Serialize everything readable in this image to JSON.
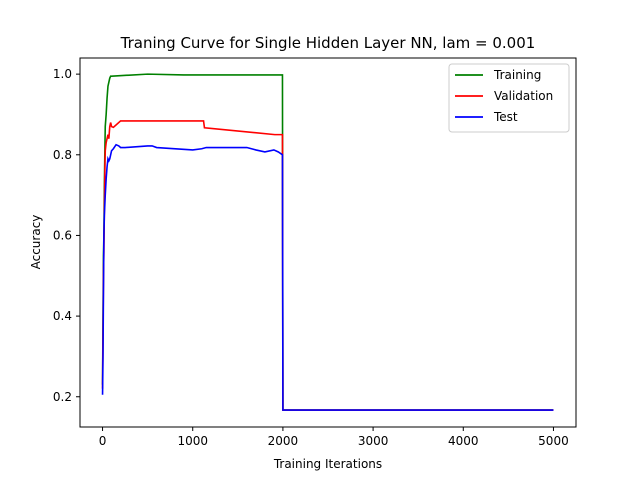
{
  "chart_data": {
    "type": "line",
    "title": "Traning Curve for Single Hidden Layer NN, lam = 0.001",
    "xlabel": "Training Iterations",
    "ylabel": "Accuracy",
    "xlim": [
      -250,
      5250
    ],
    "ylim": [
      0.125,
      1.04
    ],
    "xticks": [
      0,
      1000,
      2000,
      3000,
      4000,
      5000
    ],
    "yticks": [
      0.2,
      0.4,
      0.6,
      0.8,
      1.0
    ],
    "ytick_labels": [
      "0.2",
      "0.4",
      "0.6",
      "0.8",
      "1.0"
    ],
    "grid": false,
    "legend": "top-right",
    "series": [
      {
        "name": "Training",
        "color": "#008000",
        "x": [
          0,
          10,
          15,
          20,
          25,
          30,
          40,
          50,
          60,
          70,
          80,
          90,
          100,
          500,
          900,
          1995,
          2000,
          5000
        ],
        "y": [
          0.23,
          0.55,
          0.6,
          0.72,
          0.8,
          0.87,
          0.9,
          0.94,
          0.97,
          0.98,
          0.99,
          0.995,
          0.995,
          1.0,
          0.998,
          0.998,
          0.167,
          0.167
        ]
      },
      {
        "name": "Validation",
        "color": "#ff0000",
        "x": [
          0,
          10,
          15,
          20,
          25,
          30,
          40,
          50,
          60,
          70,
          80,
          90,
          100,
          120,
          200,
          1120,
          1130,
          1910,
          1995,
          2000,
          5000
        ],
        "y": [
          0.22,
          0.5,
          0.56,
          0.66,
          0.75,
          0.81,
          0.83,
          0.84,
          0.85,
          0.84,
          0.87,
          0.88,
          0.87,
          0.868,
          0.884,
          0.884,
          0.867,
          0.85,
          0.85,
          0.167,
          0.167
        ]
      },
      {
        "name": "Test",
        "color": "#0000ff",
        "x": [
          0,
          5,
          10,
          15,
          20,
          30,
          40,
          50,
          60,
          70,
          80,
          100,
          120,
          150,
          180,
          200,
          250,
          500,
          550,
          600,
          1000,
          1100,
          1150,
          1600,
          1700,
          1800,
          1900,
          1950,
          1995,
          2000,
          5000
        ],
        "y": [
          0.205,
          0.3,
          0.46,
          0.6,
          0.65,
          0.7,
          0.74,
          0.77,
          0.79,
          0.785,
          0.79,
          0.81,
          0.815,
          0.825,
          0.822,
          0.818,
          0.818,
          0.822,
          0.822,
          0.818,
          0.812,
          0.815,
          0.818,
          0.818,
          0.812,
          0.807,
          0.812,
          0.807,
          0.8,
          0.167,
          0.167
        ]
      }
    ]
  }
}
